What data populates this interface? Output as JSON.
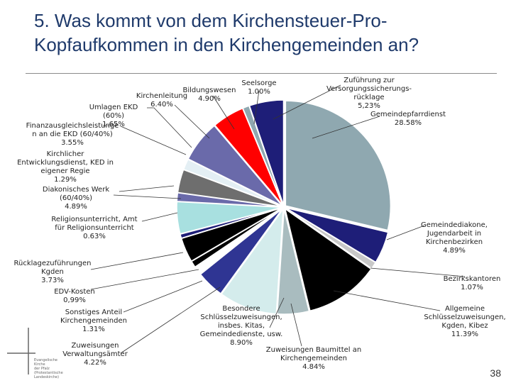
{
  "title_line1": "5. Was kommt von dem Kirchensteuer-Pro-",
  "title_line2": "Kopfaufkommen in den Kirchengemeinden an?",
  "page_number": "38",
  "logo_text": [
    "Evangelische Kirche",
    "der Pfalz",
    "(Protestantische Landeskirche)"
  ],
  "colors": {
    "title": "#1f3a6b",
    "slices": [
      "#8fa8b0",
      "#1e1e78",
      "#c8c8c8",
      "#000000",
      "#a9bcbf",
      "#d4ecec",
      "#2f3593",
      "#ffffff",
      "#000000",
      "#000000",
      "#1e1e78",
      "#a8e0e0",
      "#6a6aaa",
      "#6e6e6e",
      "#e4eff4",
      "#6a6aaa",
      "#ff0000"
    ]
  },
  "chart_data": {
    "type": "pie",
    "title": "",
    "start": "12 o'clock, clockwise",
    "slices": [
      {
        "label": "Gemeindepfarrdienst",
        "value": 28.58
      },
      {
        "label": "Gemeindediakone, Jugendarbeit in Kirchenbezirken",
        "value": 4.89
      },
      {
        "label": "Bezirkskantoren",
        "value": 1.07
      },
      {
        "label": "Allgemeine Schlüsselzuweisungen, Kgden, Kibez",
        "value": 11.39
      },
      {
        "label": "Zuweisungen Baumittel an Kirchengemeinden",
        "value": 4.84
      },
      {
        "label": "Besondere Schlüsselzuweisungen, insbes. Kitas, Gemeindedienste, usw.",
        "value": 8.9
      },
      {
        "label": "Zuweisungen Verwaltungsämter",
        "value": 4.22
      },
      {
        "label": "Sonstiges Anteil Kirchengemeinden",
        "value": 1.31
      },
      {
        "label": "EDV-Kosten",
        "value": 0.99
      },
      {
        "label": "Rücklagezuführungen Kgden",
        "value": 3.73
      },
      {
        "label": "Religionsunterricht, Amt für Religionsunterricht",
        "value": 0.63
      },
      {
        "label": "Diakonisches Werk (60/40%)",
        "value": 4.89
      },
      {
        "label": "Kirchlicher Entwicklungsdienst, KED in eigener Regie",
        "value": 1.29
      },
      {
        "label": "Finanzausgleichsleistungen an die EKD (60/40%)",
        "value": 3.55
      },
      {
        "label": "Umlagen EKD (60%)",
        "value": 1.65
      },
      {
        "label": "Kirchenleitung",
        "value": 6.4
      },
      {
        "label": "Bildungswesen",
        "value": 4.9
      },
      {
        "label": "Seelsorge",
        "value": 1.0
      },
      {
        "label": "Zuführung zur Versorgungssicherungsrücklage",
        "value": 5.23
      }
    ]
  },
  "labels": {
    "seelsorge": {
      "name": "Seelsorge",
      "value": "1.00%"
    },
    "zufuehrung": {
      "l1": "Zuführung zur",
      "l2": "Versorgungssicherungs-",
      "l3": "rücklage",
      "value": "5,23%"
    },
    "bildung": {
      "name": "Bildungswesen",
      "value": "4.90%"
    },
    "kirchenleitung": {
      "name": "Kirchenleitung",
      "value": "6.40%"
    },
    "umlagen": {
      "name": "Umlagen EKD (60%)",
      "value": "1.65%"
    },
    "gemeindepfarr": {
      "name": "Gemeindepfarrdienst",
      "value": "28.58%"
    },
    "finanz": {
      "l1": "Finanzausgleichsleistunge",
      "l2": "n an die EKD (60/40%)",
      "value": "3.55%"
    },
    "ked": {
      "l1": "Kirchlicher",
      "l2": "Entwicklungsdienst, KED in",
      "l3": "eigener Regie",
      "value": "1.29%"
    },
    "diakonie": {
      "l1": "Diakonisches Werk",
      "l2": "(60/40%)",
      "value": "4.89%"
    },
    "religion": {
      "l1": "Religionsunterricht, Amt",
      "l2": "für Religionsunterricht",
      "value": "0.63%"
    },
    "gemeindediakone": {
      "l1": "Gemeindediakone,",
      "l2": "Jugendarbeit in",
      "l3": "Kirchenbezirken",
      "value": "4.89%"
    },
    "ruecklage": {
      "l1": "Rücklagezuführungen",
      "l2": "Kgden",
      "value": "3.73%"
    },
    "bezirk": {
      "name": "Bezirkskantoren",
      "value": "1.07%"
    },
    "edv": {
      "name": "EDV-Kosten",
      "value": "0,99%"
    },
    "sonstiges": {
      "l1": "Sonstiges Anteil",
      "l2": "Kirchengemeinden",
      "value": "1.31%"
    },
    "besondere": {
      "l1": "Besondere",
      "l2": "Schlüsselzuweisungen,",
      "l3": "insbes. Kitas,",
      "l4": "Gemeindedienste, usw.",
      "value": "8.90%"
    },
    "allgemeine": {
      "l1": "Allgemeine",
      "l2": "Schlüsselzuweisungen,",
      "l3": "Kgden, Kibez",
      "value": "11.39%"
    },
    "zuwverw": {
      "l1": "Zuweisungen",
      "l2": "Verwaltungsämter",
      "value": "4.22%"
    },
    "baumittel": {
      "l1": "Zuweisungen Baumittel an",
      "l2": "Kirchengemeinden",
      "value": "4.84%"
    }
  }
}
